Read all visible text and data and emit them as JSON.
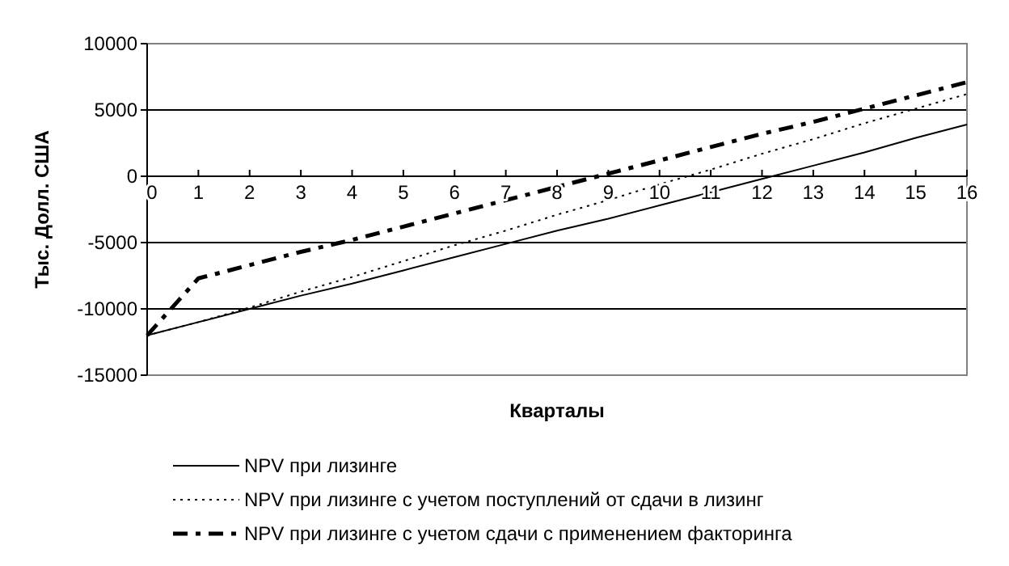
{
  "chart_data": {
    "type": "line",
    "xlabel": "Кварталы",
    "ylabel": "Тыс. Долл. США",
    "x": [
      0,
      1,
      2,
      3,
      4,
      5,
      6,
      7,
      8,
      9,
      10,
      11,
      12,
      13,
      14,
      15,
      16
    ],
    "xlim": [
      0,
      16
    ],
    "xticks": [
      0,
      1,
      2,
      3,
      4,
      5,
      6,
      7,
      8,
      9,
      10,
      11,
      12,
      13,
      14,
      15,
      16
    ],
    "ylim": [
      -15000,
      10000
    ],
    "yticks": [
      -15000,
      -10000,
      -5000,
      0,
      5000,
      10000
    ],
    "grid": "y",
    "legend": "bottom",
    "marker": "none",
    "series": [
      {
        "name": "NPV при лизинге",
        "color": "#000000",
        "line_style": "solid",
        "values": [
          -12000,
          -11000,
          -10000,
          -9000,
          -8100,
          -7100,
          -6100,
          -5100,
          -4100,
          -3200,
          -2200,
          -1200,
          -200,
          800,
          1800,
          2900,
          3900
        ]
      },
      {
        "name": "NPV при лизинге с учетом поступлений от сдачи в лизинг",
        "color": "#000000",
        "line_style": "dotted",
        "values": [
          -12000,
          -11000,
          -9900,
          -8700,
          -7600,
          -6400,
          -5200,
          -4100,
          -2900,
          -1800,
          -600,
          500,
          1700,
          2800,
          4000,
          5100,
          6200
        ]
      },
      {
        "name": "NPV при лизинге с учетом сдачи с применением факторинга",
        "color": "#000000",
        "line_style": "dashed",
        "values": [
          -12000,
          -7700,
          -6700,
          -5700,
          -4800,
          -3800,
          -2800,
          -1800,
          -800,
          200,
          1200,
          2200,
          3200,
          4100,
          5100,
          6100,
          7100
        ]
      }
    ]
  }
}
